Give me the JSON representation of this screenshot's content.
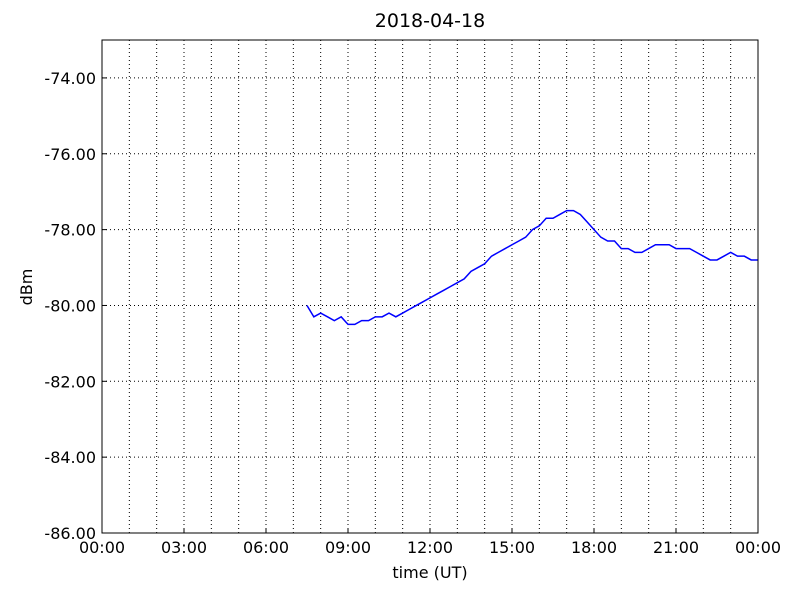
{
  "chart_data": {
    "type": "line",
    "title": "2018-04-18",
    "xlabel": "time (UT)",
    "ylabel": "dBm",
    "x": [
      7.5,
      7.75,
      8.0,
      8.25,
      8.5,
      8.75,
      9.0,
      9.25,
      9.5,
      9.75,
      10.0,
      10.25,
      10.5,
      10.75,
      11.0,
      11.25,
      11.5,
      11.75,
      12.0,
      12.25,
      12.5,
      12.75,
      13.0,
      13.25,
      13.5,
      13.75,
      14.0,
      14.25,
      14.5,
      14.75,
      15.0,
      15.25,
      15.5,
      15.75,
      16.0,
      16.25,
      16.5,
      16.75,
      17.0,
      17.25,
      17.5,
      17.75,
      18.0,
      18.25,
      18.5,
      18.75,
      19.0,
      19.25,
      19.5,
      19.75,
      20.0,
      20.25,
      20.5,
      20.75,
      21.0,
      21.25,
      21.5,
      21.75,
      22.0,
      22.25,
      22.5,
      22.75,
      23.0,
      23.25,
      23.5,
      23.75,
      24.0
    ],
    "series": [
      {
        "name": "dBm",
        "color": "#0000ff",
        "values": [
          -80.0,
          -80.3,
          -80.2,
          -80.3,
          -80.4,
          -80.3,
          -80.5,
          -80.5,
          -80.4,
          -80.4,
          -80.3,
          -80.3,
          -80.2,
          -80.3,
          -80.2,
          -80.1,
          -80.0,
          -79.9,
          -79.8,
          -79.7,
          -79.6,
          -79.5,
          -79.4,
          -79.3,
          -79.1,
          -79.0,
          -78.9,
          -78.7,
          -78.6,
          -78.5,
          -78.4,
          -78.3,
          -78.2,
          -78.0,
          -77.9,
          -77.7,
          -77.7,
          -77.6,
          -77.5,
          -77.5,
          -77.6,
          -77.8,
          -78.0,
          -78.2,
          -78.3,
          -78.3,
          -78.5,
          -78.5,
          -78.6,
          -78.6,
          -78.5,
          -78.4,
          -78.4,
          -78.4,
          -78.5,
          -78.5,
          -78.5,
          -78.6,
          -78.7,
          -78.8,
          -78.8,
          -78.7,
          -78.6,
          -78.7,
          -78.7,
          -78.8,
          -78.8
        ]
      }
    ],
    "xlim": [
      0,
      24
    ],
    "xticks": [
      {
        "value": 0,
        "label": "00:00"
      },
      {
        "value": 3,
        "label": "03:00"
      },
      {
        "value": 6,
        "label": "06:00"
      },
      {
        "value": 9,
        "label": "09:00"
      },
      {
        "value": 12,
        "label": "12:00"
      },
      {
        "value": 15,
        "label": "15:00"
      },
      {
        "value": 18,
        "label": "18:00"
      },
      {
        "value": 21,
        "label": "21:00"
      },
      {
        "value": 24,
        "label": "00:00"
      }
    ],
    "xminorticks": [
      1,
      2,
      4,
      5,
      7,
      8,
      10,
      11,
      13,
      14,
      16,
      17,
      19,
      20,
      22,
      23
    ],
    "ylim": [
      -86,
      -73
    ],
    "yticks": [
      {
        "value": -86,
        "label": "-86.00"
      },
      {
        "value": -84,
        "label": "-84.00"
      },
      {
        "value": -82,
        "label": "-82.00"
      },
      {
        "value": -80,
        "label": "-80.00"
      },
      {
        "value": -78,
        "label": "-78.00"
      },
      {
        "value": -76,
        "label": "-76.00"
      },
      {
        "value": -74,
        "label": "-74.00"
      }
    ],
    "grid": true
  }
}
